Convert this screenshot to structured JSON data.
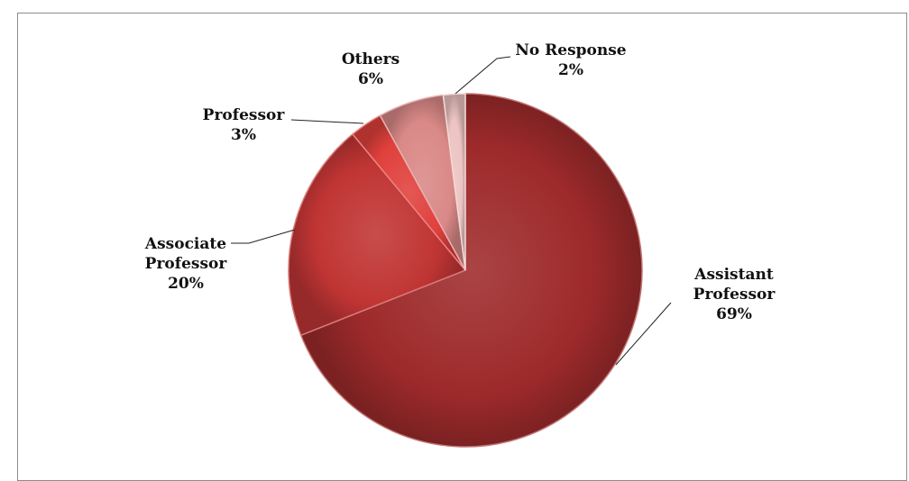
{
  "chart_data": {
    "type": "pie",
    "title": "",
    "legend": "none",
    "slices": [
      {
        "label": "Assistant Professor",
        "label_lines": [
          "Assistant",
          "Professor"
        ],
        "value": 69,
        "value_label": "69%",
        "color": "#9e2a2b"
      },
      {
        "label": "Associate Professor",
        "label_lines": [
          "Associate",
          "Professor"
        ],
        "value": 20,
        "value_label": "20%",
        "color": "#c03534"
      },
      {
        "label": "Professor",
        "label_lines": [
          "Professor"
        ],
        "value": 3,
        "value_label": "3%",
        "color": "#e0403c"
      },
      {
        "label": "Others",
        "label_lines": [
          "Others"
        ],
        "value": 6,
        "value_label": "6%",
        "color": "#d98987"
      },
      {
        "label": "No Response",
        "label_lines": [
          "No Response"
        ],
        "value": 2,
        "value_label": "2%",
        "color": "#ecc4c3"
      }
    ]
  }
}
